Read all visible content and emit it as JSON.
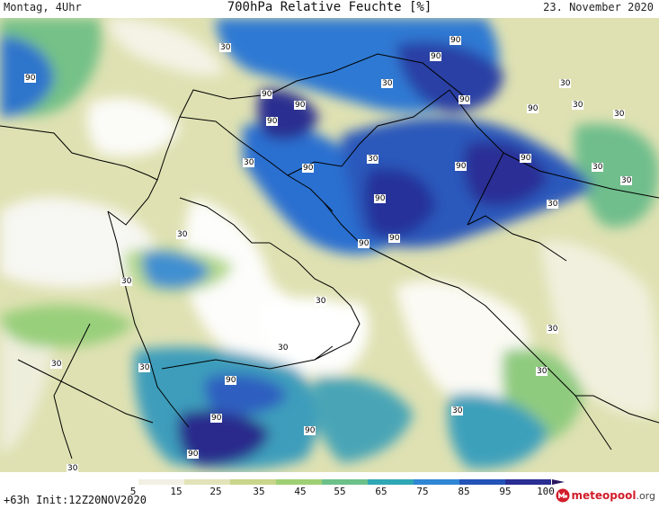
{
  "header": {
    "left": "Montag, 4Uhr",
    "title": "700hPa Relative Feuchte [%]",
    "date": "23. November 2020"
  },
  "footer": {
    "run": "+63h Init:12Z20NOV2020",
    "logo_brand": "meteopool",
    "logo_tld": ".org"
  },
  "colorbar": {
    "ticks": [
      "5",
      "15",
      "25",
      "35",
      "45",
      "55",
      "65",
      "75",
      "85",
      "95",
      "100"
    ],
    "colors": [
      "#ffffff",
      "#f2f0e4",
      "#e2e3b8",
      "#c8d58a",
      "#9fcf74",
      "#6cc08a",
      "#2fa7b4",
      "#2f86d4",
      "#2352b8",
      "#2a2d92",
      "#2a1560"
    ]
  },
  "contour_labels": [
    "30",
    "90"
  ]
}
